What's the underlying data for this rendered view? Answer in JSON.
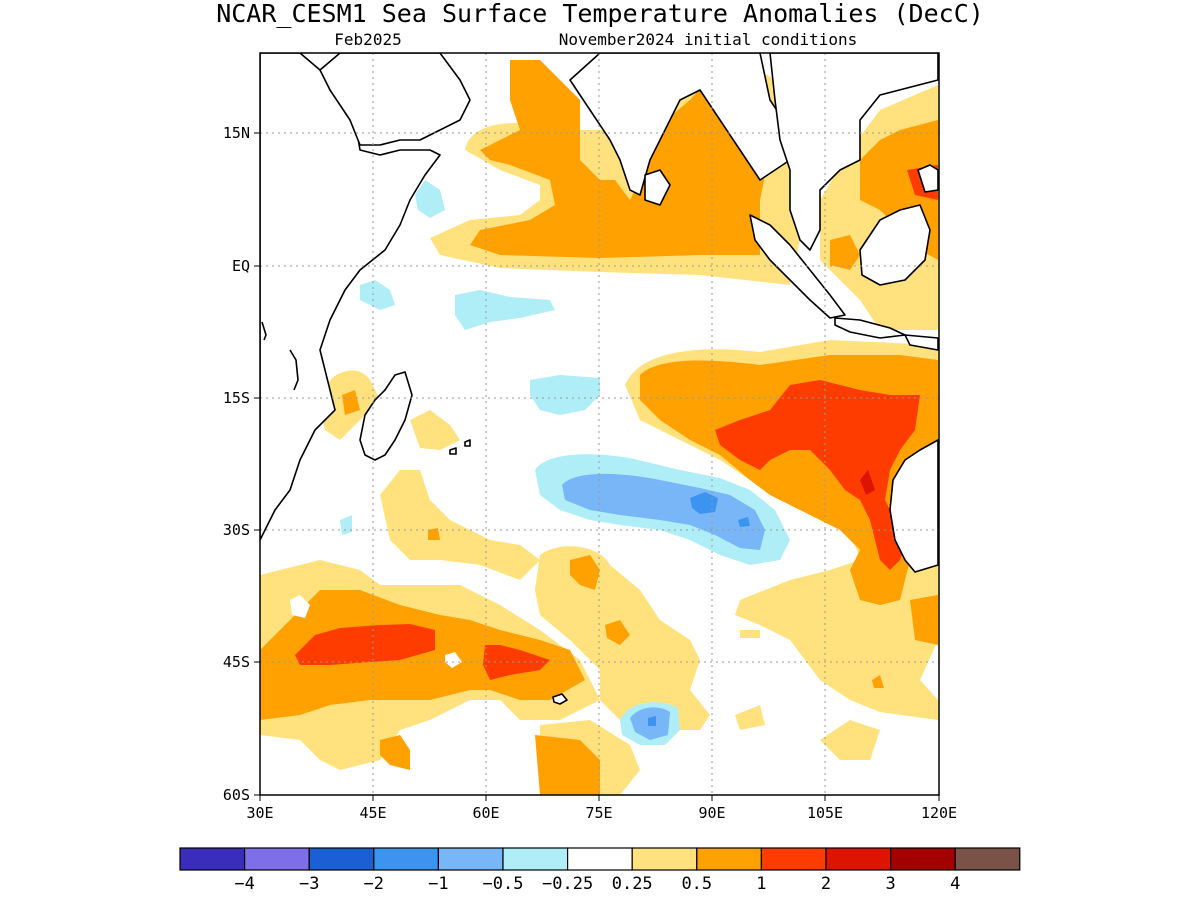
{
  "title": "NCAR_CESM1 Sea Surface Temperature Anomalies (DecC)",
  "subtitle_left": "Feb2025",
  "subtitle_right": "November2024 initial conditions",
  "lon_ticks": [
    "30E",
    "45E",
    "60E",
    "75E",
    "90E",
    "105E",
    "120E"
  ],
  "lat_ticks": [
    "15N",
    "EQ",
    "15S",
    "30S",
    "45S",
    "60S"
  ],
  "colorbar": {
    "colors": [
      "#3b2dbb",
      "#7f6ee9",
      "#1a60d4",
      "#3c94f0",
      "#78b6f7",
      "#b0eef7",
      "#ffffff",
      "#ffe27d",
      "#ffa100",
      "#ff3c00",
      "#dc1400",
      "#a30000",
      "#7a5248"
    ],
    "labels": [
      "-4",
      "-3",
      "-2",
      "-1",
      "-0.5",
      "-0.25",
      "0.25",
      "0.5",
      "1",
      "2",
      "3",
      "4"
    ]
  },
  "legend": {
    "colors": {
      "warm_weak": "#ffe27d",
      "warm_mod": "#ffa100",
      "warm_strong": "#ff3c00",
      "warm_vstrong": "#dc1400",
      "cool_weak": "#b0eef7",
      "cool_mod": "#78b6f7",
      "cool_strong": "#3c94f0"
    }
  }
}
